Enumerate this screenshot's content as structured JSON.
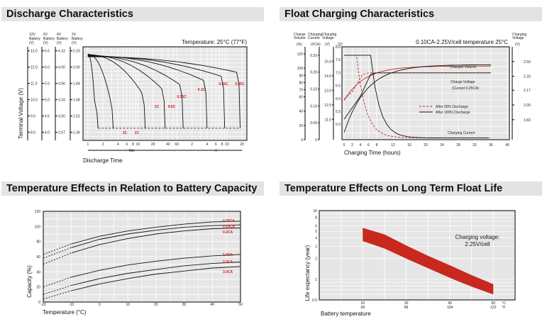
{
  "panels": {
    "discharge": {
      "title": "Discharge Characteristics"
    },
    "float_charging": {
      "title": "Float Charging Characteristics"
    },
    "temp_capacity": {
      "title": "Temperature Effects in Relation to Battery Capacity"
    },
    "float_life": {
      "title": "Temperature Effects on Long Term Float Life"
    }
  },
  "chart_data": [
    {
      "id": "discharge",
      "type": "line",
      "title": "Discharge Characteristics",
      "annotation": "Temperature: 25°C (77°F)",
      "xlabel": "Discharge Time",
      "ylabel": "Terminal Voltage (V)",
      "x_scale": "log",
      "x_units": [
        "Min",
        "H"
      ],
      "x_ticks_min": [
        "1",
        "2",
        "4",
        "6",
        "8",
        "10",
        "20",
        "40",
        "60"
      ],
      "x_ticks_h": [
        "2",
        "4",
        "6",
        "8",
        "10",
        "20"
      ],
      "voltage_scales": [
        {
          "name": "12V Battery",
          "unit": "(V)",
          "ticks": [
            "13.0",
            "12.0",
            "11.0",
            "10.0",
            "9.0",
            "8.0"
          ]
        },
        {
          "name": "6V Battery",
          "unit": "(V)",
          "ticks": [
            "6.5",
            "6.0",
            "5.5",
            "5.0",
            "4.5",
            "4.0"
          ]
        },
        {
          "name": "4V Battery",
          "unit": "(V)",
          "ticks": [
            "4.33",
            "4.00",
            "3.66",
            "3.33",
            "3.00",
            "2.67"
          ]
        },
        {
          "name": "2V Battery",
          "unit": "(V)",
          "ticks": [
            "2.16",
            "2.00",
            "1.84",
            "1.68",
            "1.52",
            "1.36"
          ]
        }
      ],
      "ylim_2v": [
        1.28,
        2.2
      ],
      "series": [
        {
          "name": "3C",
          "end_minutes": 1.6
        },
        {
          "name": "2C",
          "end_minutes": 3.2
        },
        {
          "name": "1C",
          "end_minutes": 14
        },
        {
          "name": "0.6C",
          "end_minutes": 35
        },
        {
          "name": "0.25C",
          "end_minutes": 80
        },
        {
          "name": "0.1C",
          "end_minutes": 240
        },
        {
          "name": "0.05C",
          "end_minutes": 540
        },
        {
          "name": "0.05C",
          "end_minutes": 1100
        }
      ]
    },
    {
      "id": "float_charging",
      "type": "line",
      "title": "Float Charging Characteristics",
      "annotation": "0.10CA-2.25V/cell  temperature 25°C",
      "xlabel": "Charging Time (hours)",
      "x_ticks": [
        "0",
        "2",
        "4",
        "6",
        "8",
        "12",
        "16",
        "20",
        "24",
        "28",
        "32",
        "36",
        "40"
      ],
      "left_axes": [
        {
          "name": "Charge Volume",
          "unit": "(%)",
          "ticks": [
            "120",
            "100",
            "90",
            "80",
            "70",
            "60",
            "40",
            "20",
            "0"
          ]
        },
        {
          "name": "Charging Current",
          "unit": "(XCA)",
          "ticks": [
            "0.25",
            "0.20",
            "0.15",
            "0.10",
            "0.05",
            "0"
          ]
        },
        {
          "name": "Charging Voltage",
          "unit": "(V)",
          "ticks": [
            "15.0",
            "14.0",
            "13.0",
            "12.0",
            "11.0"
          ]
        }
      ],
      "inner_axis": {
        "unit": "(V)",
        "ticks": [
          "8.0",
          "7.5",
          "7.0",
          "6.5",
          "6.0",
          "5.5",
          "5.0"
        ]
      },
      "right_axis": {
        "name": "Charging Voltage",
        "unit": "(V)",
        "ticks": [
          "2.50",
          "2.33",
          "2.17",
          "2.00",
          "1.83"
        ]
      },
      "curve_labels": [
        "Charged Volume",
        "Charge Voltage",
        "(Current 0.25CA)",
        "Charging Current"
      ],
      "legend": [
        "After 50% Discharge",
        "After 100% Discharge"
      ]
    },
    {
      "id": "temp_capacity",
      "type": "line",
      "title": "Temperature Effects in Relation to Battery Capacity",
      "xlabel": "Temperature (°C)",
      "ylabel": "Capacity (%)",
      "x_ticks": [
        "-20",
        "-10",
        "0",
        "10",
        "20",
        "30",
        "40",
        "50"
      ],
      "y_ticks": [
        "120",
        "100",
        "80",
        "60",
        "40",
        "20",
        "0"
      ],
      "xlim": [
        -20,
        50
      ],
      "ylim": [
        0,
        120
      ],
      "series": [
        {
          "name": "0.05CA",
          "x": [
            -20,
            -10,
            0,
            10,
            20,
            30,
            40,
            50
          ],
          "y": [
            63,
            77,
            87,
            94,
            99,
            103,
            106,
            107
          ]
        },
        {
          "name": "0.10CA",
          "x": [
            -20,
            -10,
            0,
            10,
            20,
            30,
            40,
            50
          ],
          "y": [
            58,
            72,
            83,
            90,
            95,
            99,
            101,
            102
          ]
        },
        {
          "name": "0.2CA",
          "x": [
            -20,
            -10,
            0,
            10,
            20,
            30,
            40,
            50
          ],
          "y": [
            50,
            65,
            76,
            84,
            90,
            94,
            97,
            98
          ]
        },
        {
          "name": "1.0CA",
          "x": [
            -20,
            -10,
            0,
            10,
            20,
            30,
            40,
            50
          ],
          "y": [
            20,
            33,
            42,
            49,
            54,
            58,
            61,
            63
          ]
        },
        {
          "name": "2.0CA",
          "x": [
            -20,
            -10,
            0,
            10,
            20,
            30,
            40,
            50
          ],
          "y": [
            10,
            22,
            31,
            38,
            43,
            48,
            51,
            53
          ]
        },
        {
          "name": "3.0CA",
          "x": [
            -20,
            -10,
            0,
            10,
            20,
            30,
            40,
            50
          ],
          "y": [
            4,
            15,
            24,
            31,
            37,
            41,
            45,
            47
          ]
        }
      ]
    },
    {
      "id": "float_life",
      "type": "area",
      "title": "Temperature Effects on Long Term Float Life",
      "annotation": "Charging voltage: 2.25V/cell",
      "xlabel": "Battery temperature",
      "ylabel": "Life expectancy (year)",
      "y_scale": "log",
      "ylim": [
        0.5,
        10
      ],
      "y_ticks": [
        "10",
        "8",
        "6",
        "5",
        "4",
        "3",
        "2",
        "1",
        "0.5"
      ],
      "x_ticks_c": [
        "20",
        "30",
        "40",
        "50"
      ],
      "x_ticks_f": [
        "68",
        "86",
        "104",
        "122"
      ],
      "x_units": [
        "°C",
        "°F"
      ],
      "band": {
        "x": [
          20,
          25,
          30,
          35,
          40,
          45,
          50
        ],
        "upper": [
          5.6,
          4.5,
          3.1,
          2.2,
          1.6,
          1.15,
          0.85
        ],
        "lower": [
          3.6,
          2.8,
          2.0,
          1.45,
          1.05,
          0.78,
          0.6
        ]
      },
      "band_color": "#c8281e"
    }
  ]
}
